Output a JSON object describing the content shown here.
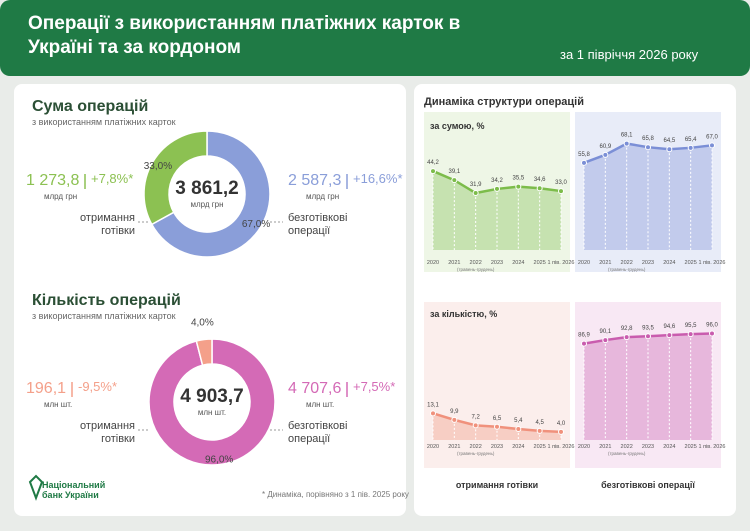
{
  "header": {
    "title": "Операції з використанням платіжних карток в Україні та за кордоном",
    "subtitle": "за 1 півріччя 2026 року"
  },
  "logo": "Національний банк України",
  "footnote": "* Динаміка, порівняно з 1 пів. 2025 року",
  "right_panel": {
    "title": "Динаміка структури операцій",
    "column_labels": [
      "отримання готівки",
      "безготівкові операції"
    ]
  },
  "chart_data": [
    {
      "type": "pie",
      "title": "Сума операцій",
      "subtitle": "з використанням платіжних карток",
      "total": {
        "value": 3861.2,
        "label": "3 861,2"
      },
      "total_unit": "млрд грн",
      "categories": [
        "отримання готівки",
        "безготівкові операції"
      ],
      "values": [
        33.0,
        67.0
      ],
      "value_labels": [
        "33,0%",
        "67,0%"
      ],
      "colors": [
        "#8cc152",
        "#8a9ed9"
      ],
      "amounts": [
        {
          "value": 1273.8,
          "label": "1 273,8"
        },
        {
          "value": 2587.3,
          "label": "2 587,3"
        }
      ],
      "amount_unit": "млрд грн",
      "changes": [
        {
          "value": 7.8,
          "label": "+7,8%*"
        },
        {
          "value": 16.6,
          "label": "+16,6%*"
        }
      ]
    },
    {
      "type": "pie",
      "title": "Кількість операцій",
      "subtitle": "з використанням платіжних карток",
      "total": {
        "value": 4903.7,
        "label": "4 903,7"
      },
      "total_unit": "млн шт.",
      "categories": [
        "отримання готівки",
        "безготівкові операції"
      ],
      "values": [
        4.0,
        96.0
      ],
      "value_labels": [
        "4,0%",
        "96,0%"
      ],
      "colors": [
        "#f4a08a",
        "#d46ab6"
      ],
      "amounts": [
        {
          "value": 196.1,
          "label": "196,1"
        },
        {
          "value": 4707.6,
          "label": "4 707,6"
        }
      ],
      "amount_unit": "млн шт.",
      "changes": [
        {
          "value": -9.5,
          "label": "-9,5%*"
        },
        {
          "value": 7.5,
          "label": "+7,5%*"
        }
      ]
    },
    {
      "type": "area",
      "title": "за сумою, %",
      "color": "#7cbc4a",
      "ylim": [
        0,
        70
      ],
      "categories": [
        "2020",
        "2021",
        "2022",
        "2023",
        "2024",
        "2025",
        "1 пів. 2026"
      ],
      "x_notes": [
        null,
        null,
        "(травень-грудень)",
        null,
        null,
        null,
        null
      ],
      "values": [
        44.2,
        39.1,
        31.9,
        34.2,
        35.5,
        34.6,
        33.0
      ],
      "value_labels": [
        "44,2",
        "39,1",
        "31,9",
        "34,2",
        "35,5",
        "34,6",
        "33,0"
      ]
    },
    {
      "type": "area",
      "color": "#7b8fd6",
      "ylim": [
        0,
        80
      ],
      "categories": [
        "2020",
        "2021",
        "2022",
        "2023",
        "2024",
        "2025",
        "1 пів. 2026"
      ],
      "x_notes": [
        null,
        null,
        "(травень-грудень)",
        null,
        null,
        null,
        null
      ],
      "values": [
        55.8,
        60.9,
        68.1,
        65.8,
        64.5,
        65.4,
        67.0
      ],
      "value_labels": [
        "55,8",
        "60,9",
        "68,1",
        "65,8",
        "64,5",
        "65,4",
        "67,0"
      ]
    },
    {
      "type": "area",
      "title": "за кількістю, %",
      "color": "#f0917c",
      "ylim": [
        0,
        60
      ],
      "categories": [
        "2020",
        "2021",
        "2022",
        "2023",
        "2024",
        "2025",
        "1 пів. 2026"
      ],
      "x_notes": [
        null,
        null,
        "(травень-грудень)",
        null,
        null,
        null,
        null
      ],
      "values": [
        13.1,
        9.9,
        7.2,
        6.5,
        5.4,
        4.5,
        4.0
      ],
      "value_labels": [
        "13,1",
        "9,9",
        "7,2",
        "6,5",
        "5,4",
        "4,5",
        "4,0"
      ]
    },
    {
      "type": "area",
      "color": "#c95cae",
      "ylim": [
        0,
        110
      ],
      "categories": [
        "2020",
        "2021",
        "2022",
        "2023",
        "2024",
        "2025",
        "1 пів. 2026"
      ],
      "x_notes": [
        null,
        null,
        "(травень-грудень)",
        null,
        null,
        null,
        null
      ],
      "values": [
        86.9,
        90.1,
        92.8,
        93.5,
        94.6,
        95.5,
        96.0
      ],
      "value_labels": [
        "86,9",
        "90,1",
        "92,8",
        "93,5",
        "94,6",
        "95,5",
        "96,0"
      ]
    }
  ]
}
